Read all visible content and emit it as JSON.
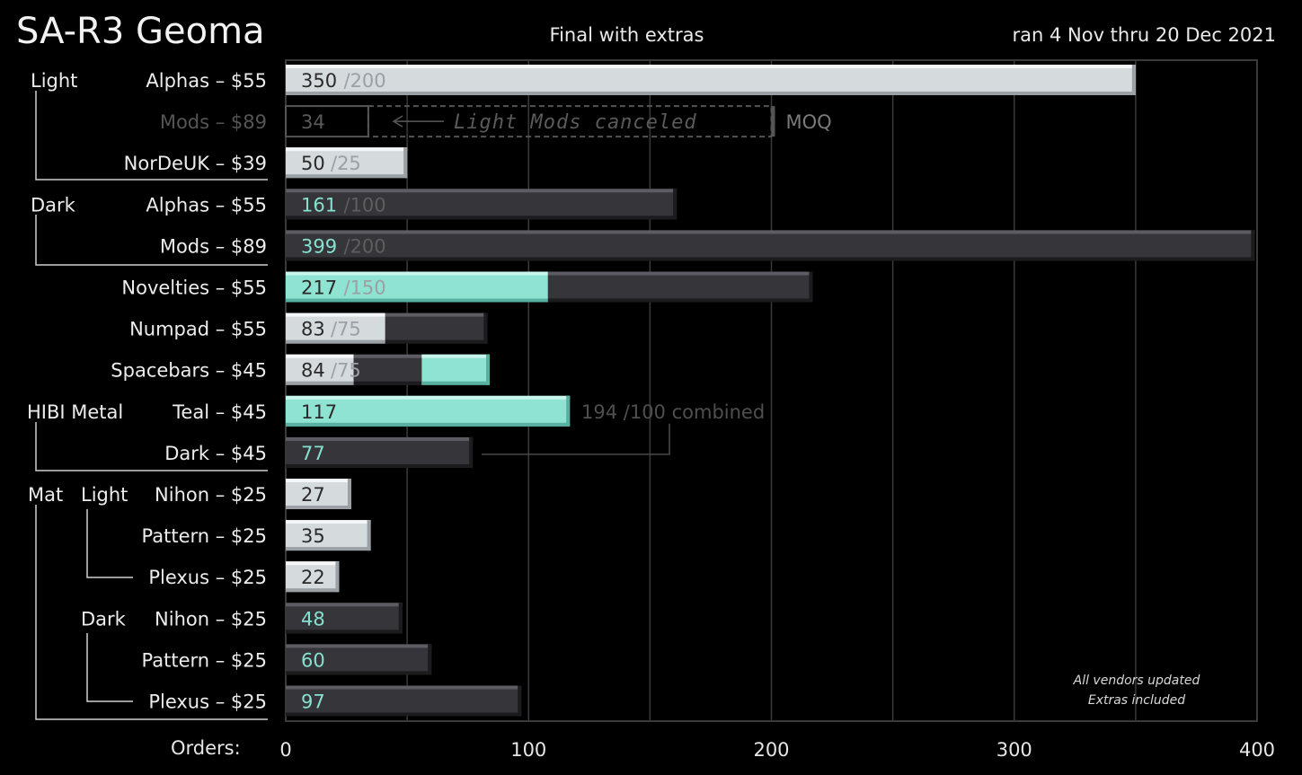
{
  "title": "SA-R3 Geoma",
  "subtitle": "Final with extras",
  "date_range": "ran 4 Nov thru 20 Dec 2021",
  "note_lines": [
    "All vendors updated",
    "Extras included"
  ],
  "colors": {
    "background": "#000000",
    "light_bar": "#d5dadd",
    "dark_bar": "#35353a",
    "teal_bar": "#8ee3d2",
    "grid": "#3a3a3a",
    "moq_text": "#8a8a8a",
    "teal_text": "#86e0cf"
  },
  "chart_data": {
    "type": "bar",
    "orientation": "horizontal",
    "xlabel": "Orders:",
    "xlim": [
      0,
      400
    ],
    "xticks": [
      0,
      100,
      200,
      300,
      400
    ],
    "grid": true,
    "rows": [
      {
        "label": "Alphas – $55",
        "value": 350,
        "moq": 200,
        "group": "Light",
        "segments": [
          {
            "color": "light",
            "value": 350
          }
        ]
      },
      {
        "label": "Mods – $89",
        "value": 34,
        "moq": 200,
        "group": "Light",
        "canceled": true,
        "annotation": "Light Mods canceled",
        "moq_label": "MOQ",
        "segments": []
      },
      {
        "label": "NorDeUK – $39",
        "value": 50,
        "moq": 25,
        "group": "Light",
        "segments": [
          {
            "color": "light",
            "value": 50
          }
        ]
      },
      {
        "label": "Alphas – $55",
        "value": 161,
        "moq": 100,
        "group": "Dark",
        "segments": [
          {
            "color": "dark",
            "value": 161
          }
        ]
      },
      {
        "label": "Mods – $89",
        "value": 399,
        "moq": 200,
        "group": "Dark",
        "segments": [
          {
            "color": "dark",
            "value": 399
          }
        ]
      },
      {
        "label": "Novelties – $55",
        "value": 217,
        "moq": 150,
        "segments": [
          {
            "color": "teal",
            "value": 108
          },
          {
            "color": "dark",
            "value": 109
          }
        ]
      },
      {
        "label": "Numpad – $55",
        "value": 83,
        "moq": 75,
        "segments": [
          {
            "color": "light",
            "value": 41
          },
          {
            "color": "dark",
            "value": 42
          }
        ]
      },
      {
        "label": "Spacebars – $45",
        "value": 84,
        "moq": 75,
        "segments": [
          {
            "color": "light",
            "value": 28
          },
          {
            "color": "dark",
            "value": 28
          },
          {
            "color": "teal",
            "value": 28
          }
        ]
      },
      {
        "label": "Teal – $45",
        "value": 117,
        "group": "HIBI Metal",
        "segments": [
          {
            "color": "teal",
            "value": 117
          }
        ]
      },
      {
        "label": "Dark – $45",
        "value": 77,
        "group": "HIBI Metal",
        "segments": [
          {
            "color": "dark",
            "value": 77
          }
        ]
      },
      {
        "label": "Nihon – $25",
        "value": 27,
        "group": "Mat Light",
        "segments": [
          {
            "color": "light",
            "value": 27
          }
        ]
      },
      {
        "label": "Pattern – $25",
        "value": 35,
        "group": "Mat Light",
        "segments": [
          {
            "color": "light",
            "value": 35
          }
        ]
      },
      {
        "label": "Plexus – $25",
        "value": 22,
        "group": "Mat Light",
        "segments": [
          {
            "color": "light",
            "value": 22
          }
        ]
      },
      {
        "label": "Nihon – $25",
        "value": 48,
        "group": "Mat Dark",
        "segments": [
          {
            "color": "dark",
            "value": 48
          }
        ]
      },
      {
        "label": "Pattern – $25",
        "value": 60,
        "group": "Mat Dark",
        "segments": [
          {
            "color": "dark",
            "value": 60
          }
        ]
      },
      {
        "label": "Plexus – $25",
        "value": 97,
        "group": "Mat Dark",
        "segments": [
          {
            "color": "dark",
            "value": 97
          }
        ]
      }
    ],
    "group_labels": [
      "Light",
      "Dark",
      "HIBI Metal",
      "Mat",
      "Light",
      "Dark"
    ],
    "combined": {
      "total": 194,
      "moq": 100,
      "label": "194 /100 combined",
      "rows": [
        8,
        9
      ]
    }
  }
}
